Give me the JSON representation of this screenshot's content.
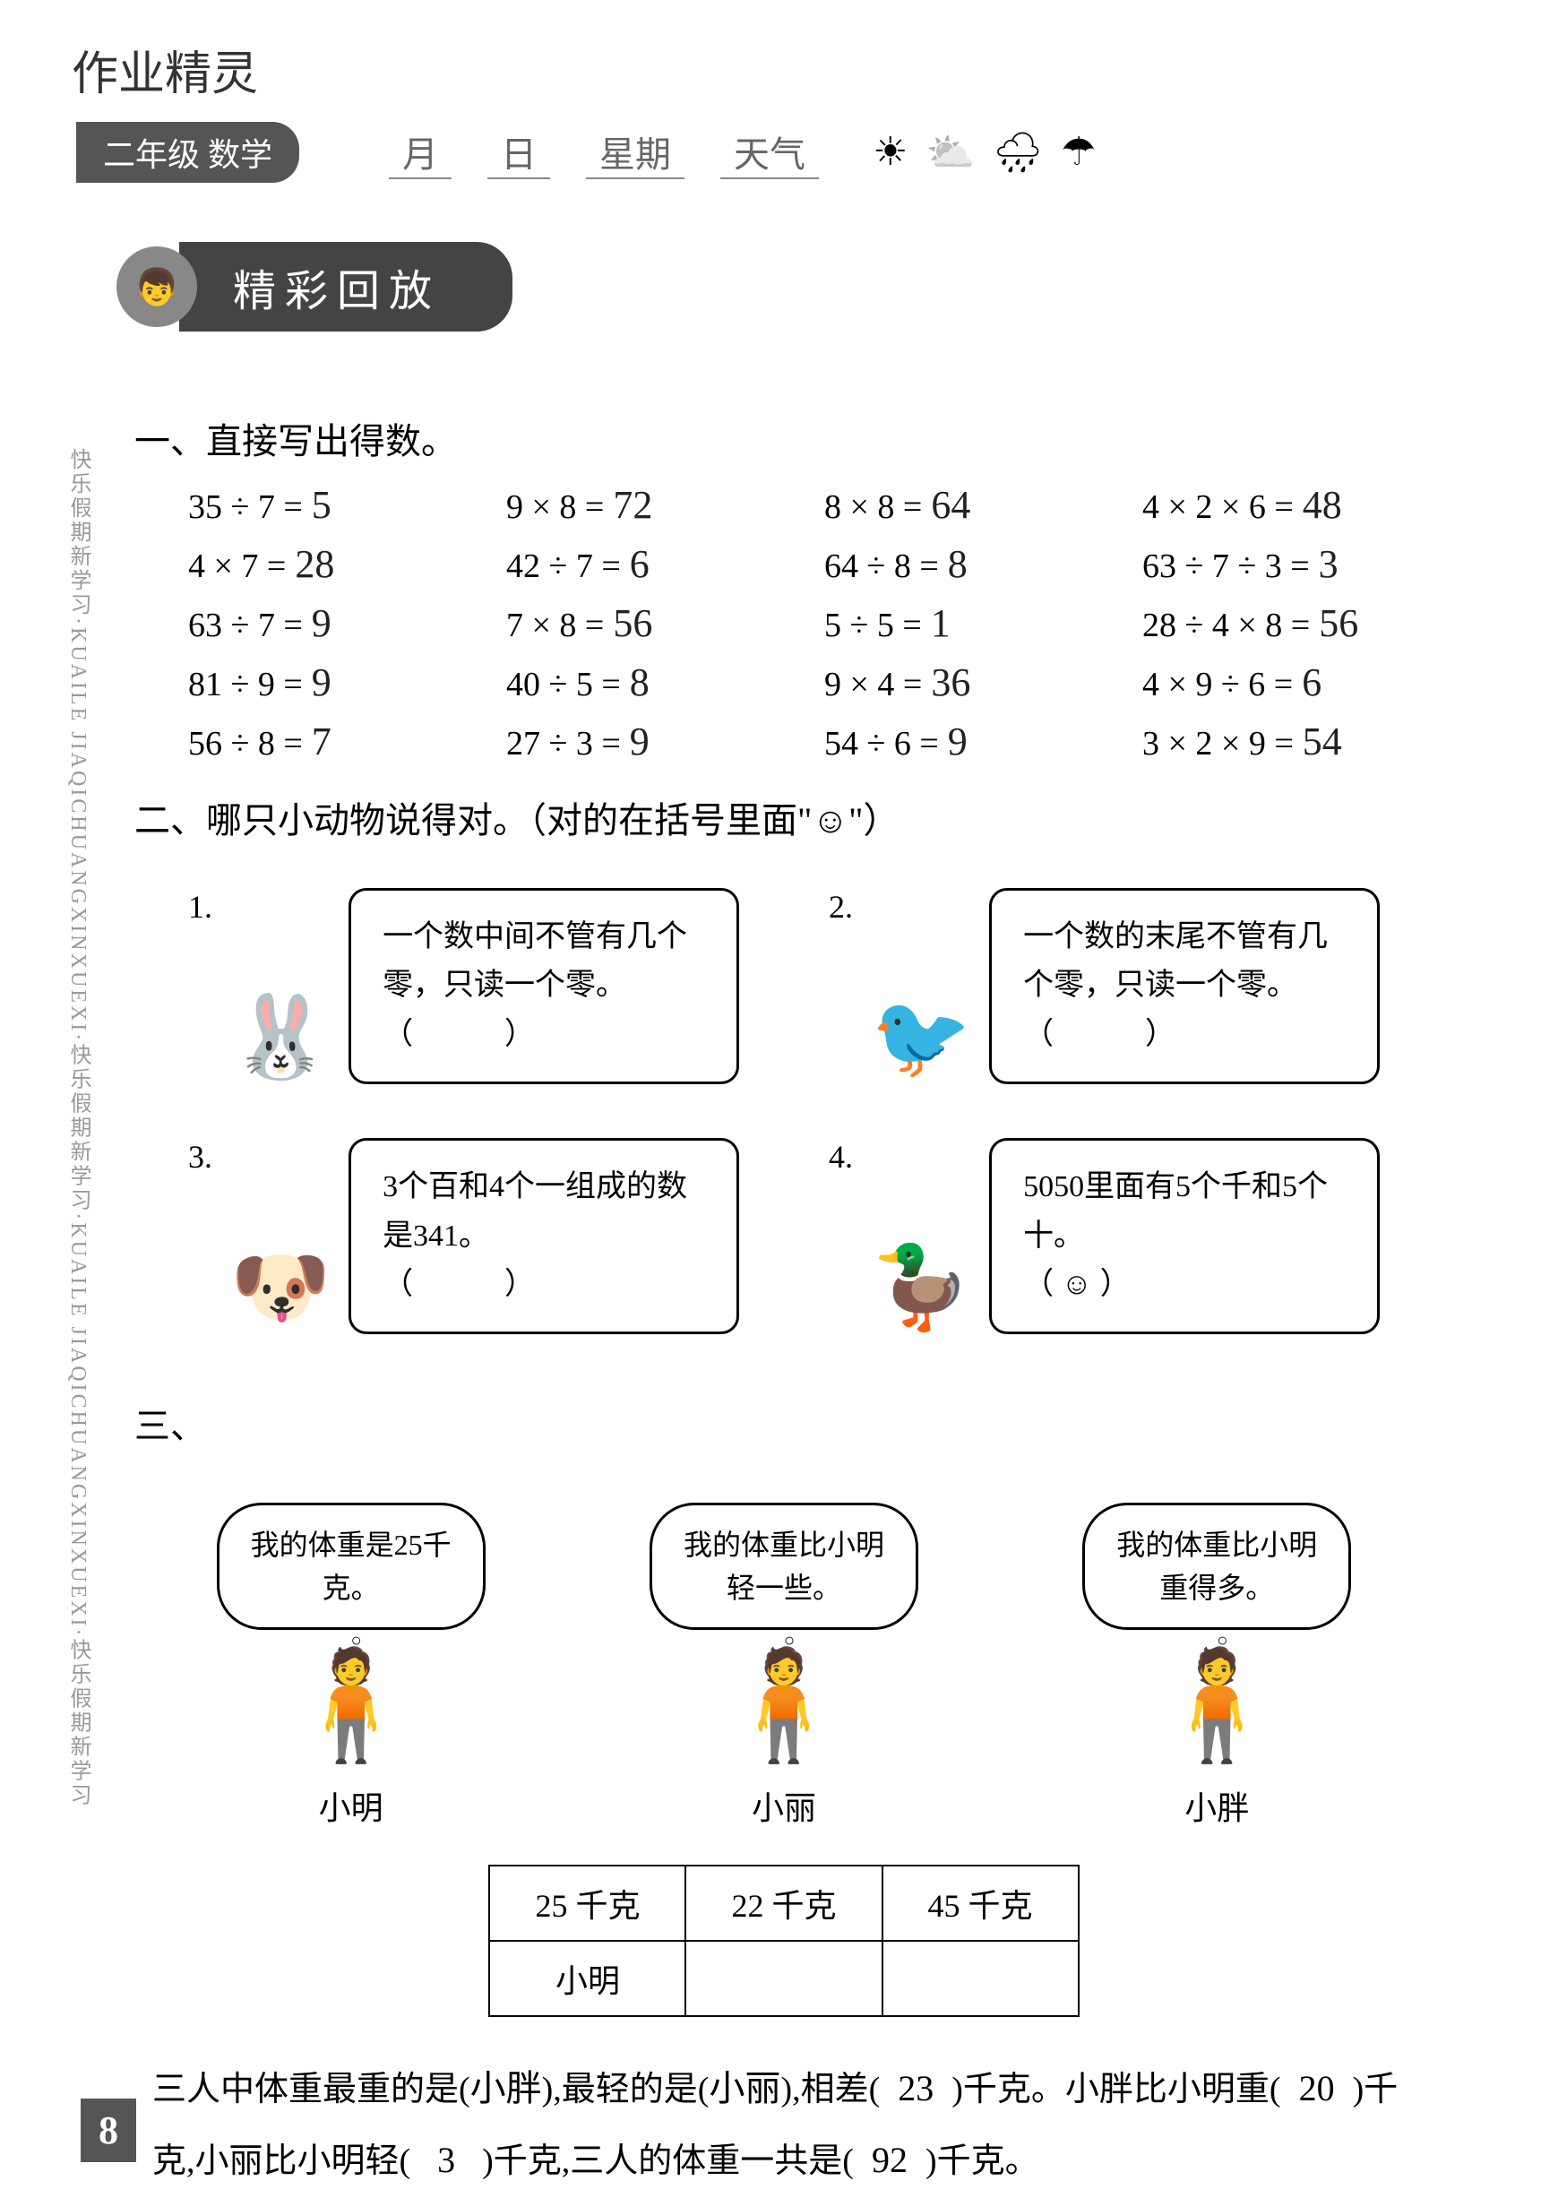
{
  "header": {
    "handwritten_note": "作业精灵",
    "grade_label": "二年级 数学",
    "month_label": "月",
    "day_label": "日",
    "weekday_label": "星期",
    "weather_label": "天气",
    "weather_icons": [
      "☀",
      "⛅",
      "🌧",
      "☂"
    ]
  },
  "section": {
    "icon": "👦",
    "title": "精彩回放"
  },
  "side_text": "快乐假期新学习·KUAILE JIAQICHUANGXINXUEXI·快乐假期新学习·KUAILE JIAQICHUANGXINXUEXI·快乐假期新学习",
  "page_number": "8",
  "q1": {
    "title": "一、直接写出得数。",
    "problems": [
      {
        "expr": "35 ÷ 7 =",
        "ans": "5"
      },
      {
        "expr": "9 × 8 =",
        "ans": "72"
      },
      {
        "expr": "8 × 8 =",
        "ans": "64"
      },
      {
        "expr": "4 × 2 × 6 =",
        "ans": "48"
      },
      {
        "expr": "4 × 7 =",
        "ans": "28"
      },
      {
        "expr": "42 ÷ 7 =",
        "ans": "6"
      },
      {
        "expr": "64 ÷ 8 =",
        "ans": "8"
      },
      {
        "expr": "63 ÷ 7 ÷ 3 =",
        "ans": "3"
      },
      {
        "expr": "63 ÷ 7 =",
        "ans": "9"
      },
      {
        "expr": "7 × 8 =",
        "ans": "56"
      },
      {
        "expr": "5 ÷ 5 =",
        "ans": "1"
      },
      {
        "expr": "28 ÷ 4 × 8 =",
        "ans": "56"
      },
      {
        "expr": "81 ÷ 9 =",
        "ans": "9"
      },
      {
        "expr": "40 ÷ 5 =",
        "ans": "8"
      },
      {
        "expr": "9 × 4 =",
        "ans": "36"
      },
      {
        "expr": "4 × 9 ÷ 6 =",
        "ans": "6"
      },
      {
        "expr": "56 ÷ 8 =",
        "ans": "7"
      },
      {
        "expr": "27 ÷ 3 =",
        "ans": "9"
      },
      {
        "expr": "54 ÷ 6 =",
        "ans": "9"
      },
      {
        "expr": "3 × 2 × 9 =",
        "ans": "54"
      }
    ]
  },
  "q2": {
    "title": "二、哪只小动物说得对。（对的在括号里面\"☺\"）",
    "items": [
      {
        "num": "1.",
        "text": "一个数中间不管有几个零，只读一个零。",
        "bracket": "（　　　）",
        "animal": "🐰"
      },
      {
        "num": "2.",
        "text": "一个数的末尾不管有几个零，只读一个零。",
        "bracket": "（　　　）",
        "animal": "🐦"
      },
      {
        "num": "3.",
        "text": "3个百和4个一组成的数是341。",
        "bracket": "（　　　）",
        "animal": "🐶"
      },
      {
        "num": "4.",
        "text": "5050里面有5个千和5个十。",
        "bracket": "（ ☺ ）",
        "animal": "🦆"
      }
    ]
  },
  "q3": {
    "title": "三、",
    "figures": [
      {
        "bubble": "我的体重是25千克。",
        "name": "小明"
      },
      {
        "bubble": "我的体重比小明轻一些。",
        "name": "小丽"
      },
      {
        "bubble": "我的体重比小明重得多。",
        "name": "小胖"
      }
    ],
    "table": {
      "row1": [
        "25 千克",
        "22 千克",
        "45 千克"
      ],
      "row2": [
        "小明",
        "",
        ""
      ]
    },
    "text_parts": {
      "p1": "三人中体重最重的是(",
      "a1": "小胖",
      "p2": "),最轻的是(",
      "a2": "小丽",
      "p3": "),相差(",
      "a3": "23",
      "p4": ")千克。小胖比小明重(",
      "a4": "20",
      "p5": ")千克,小丽比小明轻(",
      "a5": "3",
      "p6": ")千克,三人的体重一共是(",
      "a6": "92",
      "p7": ")千克。"
    }
  }
}
